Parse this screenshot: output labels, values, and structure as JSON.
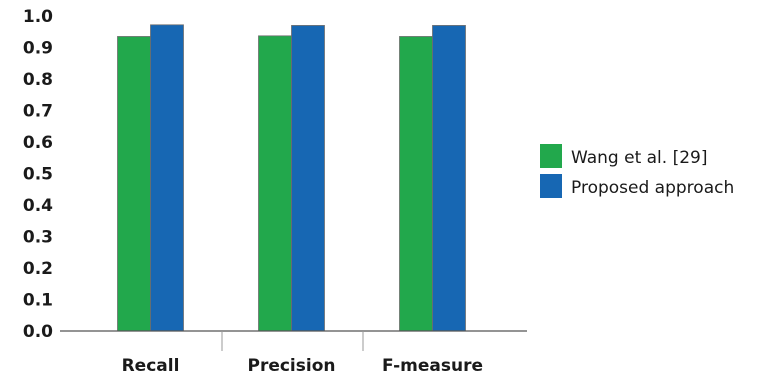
{
  "chart_data": {
    "type": "bar",
    "categories": [
      "Recall",
      "Precision",
      "F-measure"
    ],
    "series": [
      {
        "name": "Wang et al. [29]",
        "values": [
          0.935,
          0.937,
          0.935
        ],
        "color": "#22a84c"
      },
      {
        "name": "Proposed approach",
        "values": [
          0.972,
          0.97,
          0.97
        ],
        "color": "#1767b3"
      }
    ],
    "yticks": [
      "0.0",
      "0.1",
      "0.2",
      "0.3",
      "0.4",
      "0.5",
      "0.6",
      "0.7",
      "0.8",
      "0.9",
      "1.0"
    ],
    "ylim": [
      0,
      1.0
    ],
    "grid": false,
    "legend": "right"
  }
}
